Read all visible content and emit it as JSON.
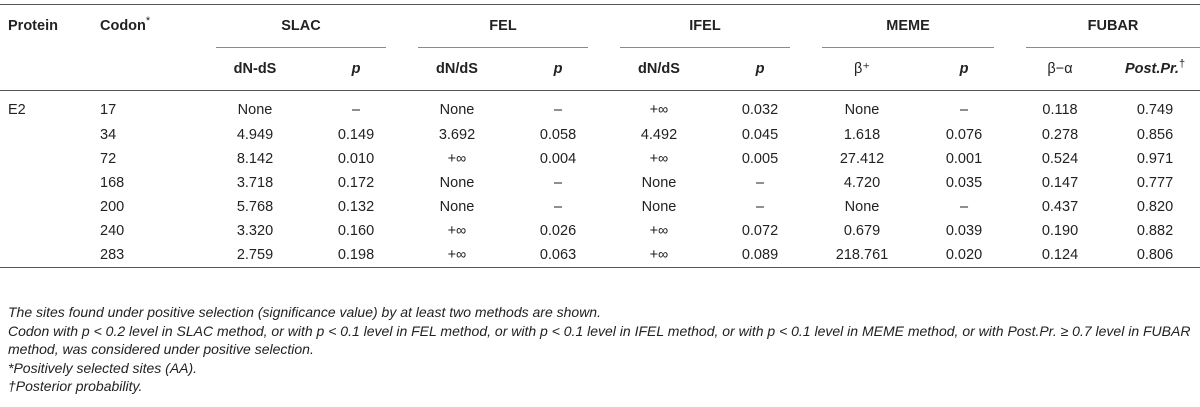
{
  "table": {
    "header_groups": {
      "protein": "Protein",
      "codon": "Codon",
      "codon_mark": "*",
      "slac": "SLAC",
      "fel": "FEL",
      "ifel": "IFEL",
      "meme": "MEME",
      "fubar": "FUBAR"
    },
    "subheaders": {
      "slac_a": "dN-dS",
      "slac_b": "p",
      "fel_a": "dN/dS",
      "fel_b": "p",
      "ifel_a": "dN/dS",
      "ifel_b": "p",
      "meme_a": "β⁺",
      "meme_b": "p",
      "fubar_a": "β−α",
      "fubar_b": "Post.Pr.",
      "fubar_b_mark": "†"
    },
    "rows": [
      {
        "protein": "E2",
        "codon": "17",
        "slac_a": "None",
        "slac_b": "–",
        "fel_a": "None",
        "fel_b": "–",
        "ifel_a": "+∞",
        "ifel_b": "0.032",
        "meme_a": "None",
        "meme_b": "–",
        "fubar_a": "0.118",
        "fubar_b": "0.749"
      },
      {
        "protein": "",
        "codon": "34",
        "slac_a": "4.949",
        "slac_b": "0.149",
        "fel_a": "3.692",
        "fel_b": "0.058",
        "ifel_a": "4.492",
        "ifel_b": "0.045",
        "meme_a": "1.618",
        "meme_b": "0.076",
        "fubar_a": "0.278",
        "fubar_b": "0.856"
      },
      {
        "protein": "",
        "codon": "72",
        "slac_a": "8.142",
        "slac_b": "0.010",
        "fel_a": "+∞",
        "fel_b": "0.004",
        "ifel_a": "+∞",
        "ifel_b": "0.005",
        "meme_a": "27.412",
        "meme_b": "0.001",
        "fubar_a": "0.524",
        "fubar_b": "0.971"
      },
      {
        "protein": "",
        "codon": "168",
        "slac_a": "3.718",
        "slac_b": "0.172",
        "fel_a": "None",
        "fel_b": "–",
        "ifel_a": "None",
        "ifel_b": "–",
        "meme_a": "4.720",
        "meme_b": "0.035",
        "fubar_a": "0.147",
        "fubar_b": "0.777"
      },
      {
        "protein": "",
        "codon": "200",
        "slac_a": "5.768",
        "slac_b": "0.132",
        "fel_a": "None",
        "fel_b": "–",
        "ifel_a": "None",
        "ifel_b": "–",
        "meme_a": "None",
        "meme_b": "–",
        "fubar_a": "0.437",
        "fubar_b": "0.820"
      },
      {
        "protein": "",
        "codon": "240",
        "slac_a": "3.320",
        "slac_b": "0.160",
        "fel_a": "+∞",
        "fel_b": "0.026",
        "ifel_a": "+∞",
        "ifel_b": "0.072",
        "meme_a": "0.679",
        "meme_b": "0.039",
        "fubar_a": "0.190",
        "fubar_b": "0.882"
      },
      {
        "protein": "",
        "codon": "283",
        "slac_a": "2.759",
        "slac_b": "0.198",
        "fel_a": "+∞",
        "fel_b": "0.063",
        "ifel_a": "+∞",
        "ifel_b": "0.089",
        "meme_a": "218.761",
        "meme_b": "0.020",
        "fubar_a": "0.124",
        "fubar_b": "0.806"
      }
    ]
  },
  "footnotes": [
    "The sites found under positive selection (significance value) by at least two methods are shown.",
    "Codon with p < 0.2 level in SLAC method, or with p < 0.1 level in FEL method, or with p < 0.1 level in IFEL method, or with p < 0.1 level in MEME method, or with Post.Pr. ≥ 0.7 level in FUBAR method, was considered under positive selection.",
    "*Positively selected sites (AA).",
    "†Posterior probability."
  ]
}
